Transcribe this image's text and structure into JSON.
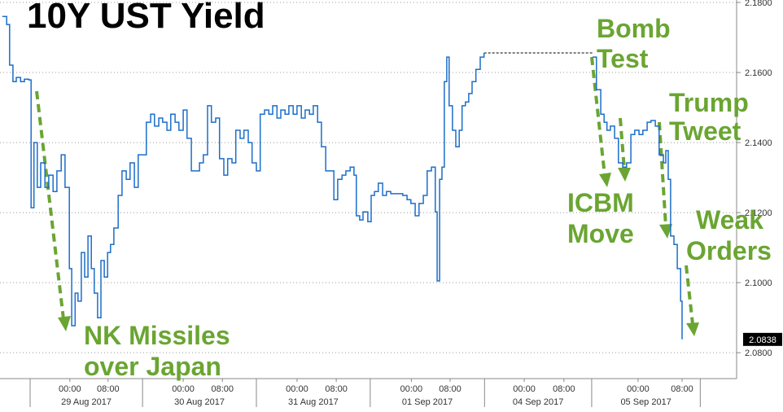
{
  "chart_data": {
    "type": "line",
    "title": "10Y UST Yield",
    "x": [
      0.5,
      1.4,
      2.0,
      2.7,
      3.4,
      4.3,
      5.1,
      6.0,
      6.5,
      7.1,
      7.8,
      8.5,
      9.4,
      10.2,
      11.1,
      11.9,
      12.8,
      13.6,
      14.5,
      15.0,
      15.7,
      16.3,
      17.0,
      17.7,
      18.4,
      19.1,
      19.7,
      20.4,
      21.1,
      21.8,
      22.5,
      23.1,
      23.8,
      24.7,
      25.5,
      26.4,
      27.2,
      28.1,
      28.9,
      29.8,
      30.6,
      31.5,
      32.3,
      33.2,
      34.0,
      34.9,
      35.7,
      36.6,
      37.4,
      38.3,
      39.1,
      40.0,
      40.8,
      41.7,
      42.5,
      43.4,
      44.2,
      45.1,
      45.9,
      46.8,
      47.6,
      48.5,
      49.3,
      50.2,
      51.0,
      51.9,
      52.7,
      53.6,
      54.4,
      55.3,
      56.2,
      57.0,
      57.9,
      58.7,
      59.6,
      60.4,
      61.3,
      62.1,
      63.0,
      63.8,
      64.7,
      65.5,
      66.4,
      67.2,
      68.1,
      68.9,
      69.8,
      70.6,
      71.5,
      72.3,
      73.2,
      74.0,
      74.5,
      75.2,
      75.9,
      76.9,
      77.6,
      78.3,
      79.1,
      80.0,
      80.8,
      81.7,
      83.4,
      84.2,
      85.1,
      85.9,
      86.8,
      87.6,
      88.5,
      89.3,
      90.2,
      91.0,
      91.4,
      91.9,
      92.4,
      92.9,
      93.4,
      93.9,
      94.6,
      95.3,
      96.0,
      96.6,
      97.3,
      98.0,
      98.7,
      99.5,
      100.4,
      101.2,
      123.9,
      124.7,
      125.6,
      126.3,
      126.9,
      127.6,
      128.5,
      129.3,
      130.2,
      131.0,
      131.9,
      132.7,
      133.6,
      134.4,
      135.3,
      136.1,
      137.0,
      137.8,
      138.7,
      139.2,
      139.7,
      140.2,
      140.9,
      141.6,
      142.3,
      142.6
    ],
    "series": [
      {
        "name": "10Y UST Yield",
        "color": "#1c6ec9",
        "values": [
          2.176,
          2.1737,
          2.1621,
          2.1574,
          2.1586,
          2.1574,
          2.1581,
          2.1579,
          2.1214,
          2.14,
          2.1272,
          2.1342,
          2.1272,
          2.1307,
          2.126,
          2.1319,
          2.1365,
          2.1272,
          2.104,
          2.0877,
          2.097,
          2.0947,
          2.1086,
          2.1016,
          2.1133,
          2.104,
          2.097,
          2.09,
          2.1063,
          2.1016,
          2.1086,
          2.1109,
          2.1156,
          2.1249,
          2.1319,
          2.1295,
          2.1342,
          2.1272,
          2.1365,
          2.1365,
          2.1458,
          2.1481,
          2.1447,
          2.147,
          2.1458,
          2.1435,
          2.1481,
          2.1458,
          2.1435,
          2.1493,
          2.1412,
          2.1319,
          2.1319,
          2.1342,
          2.1365,
          2.1505,
          2.1458,
          2.147,
          2.1354,
          2.1307,
          2.1354,
          2.1342,
          2.1435,
          2.1412,
          2.1435,
          2.14,
          2.1342,
          2.1319,
          2.1481,
          2.1493,
          2.1481,
          2.1505,
          2.147,
          2.1493,
          2.1481,
          2.1505,
          2.1481,
          2.1505,
          2.147,
          2.1493,
          2.1481,
          2.1505,
          2.1458,
          2.1388,
          2.1319,
          2.1319,
          2.1237,
          2.1295,
          2.1307,
          2.1319,
          2.133,
          2.1307,
          2.1191,
          2.1179,
          2.1202,
          2.1174,
          2.1249,
          2.126,
          2.1284,
          2.1249,
          2.126,
          2.1254,
          2.1254,
          2.1249,
          2.1237,
          2.1226,
          2.1191,
          2.1226,
          2.1249,
          2.1319,
          2.133,
          2.1202,
          2.1005,
          2.1295,
          2.133,
          2.1574,
          2.1644,
          2.1505,
          2.1435,
          2.1388,
          2.1435,
          2.1505,
          2.1516,
          2.154,
          2.1574,
          2.1609,
          2.1644,
          2.1656,
          2.1644,
          2.1551,
          2.1481,
          2.1458,
          2.1435,
          2.1447,
          2.1412,
          2.1342,
          2.133,
          2.1342,
          2.1423,
          2.1435,
          2.1423,
          2.1435,
          2.1458,
          2.1463,
          2.1447,
          2.1365,
          2.1342,
          2.1377,
          2.1295,
          2.1133,
          2.1109,
          2.104,
          2.0947,
          2.0838
        ]
      }
    ],
    "xlim": [
      0,
      154
    ],
    "ylim": [
      2.0726,
      2.1807
    ],
    "yticks": [
      {
        "value": 2.08,
        "label": "2.0800"
      },
      {
        "value": 2.1,
        "label": "2.1000"
      },
      {
        "value": 2.12,
        "label": "2.1200"
      },
      {
        "value": 2.14,
        "label": "2.1400"
      },
      {
        "value": 2.16,
        "label": "2.1600"
      },
      {
        "value": 2.18,
        "label": "2.1800"
      }
    ],
    "xticks": [
      {
        "value": 14.6,
        "label": "00:00"
      },
      {
        "value": 22.6,
        "label": "08:00"
      },
      {
        "value": 38.3,
        "label": "00:00"
      },
      {
        "value": 46.5,
        "label": "08:00"
      },
      {
        "value": 62.1,
        "label": "00:00"
      },
      {
        "value": 70.3,
        "label": "08:00"
      },
      {
        "value": 86.0,
        "label": "00:00"
      },
      {
        "value": 94.1,
        "label": "08:00"
      },
      {
        "value": 109.6,
        "label": "00:00"
      },
      {
        "value": 117.9,
        "label": "08:00"
      },
      {
        "value": 133.4,
        "label": "00:00"
      },
      {
        "value": 142.6,
        "label": "08:00"
      }
    ],
    "day_bounds": [
      6.3,
      29.8,
      53.6,
      77.4,
      101.3,
      123.7,
      146.4
    ],
    "day_labels": [
      "29 Aug 2017",
      "30 Aug 2017",
      "31 Aug 2017",
      "01 Sep 2017",
      "04 Sep 2017",
      "05 Sep 2017"
    ],
    "grid": true,
    "annotation_color": "#6aa532",
    "annotations": [
      {
        "lines": [
          "NK Missiles",
          "over Japan"
        ]
      },
      {
        "lines": [
          "Bomb",
          "Test"
        ]
      },
      {
        "lines": [
          "Trump",
          "Tweet"
        ]
      },
      {
        "lines": [
          "ICBM",
          "Move"
        ]
      },
      {
        "lines": [
          "Weak",
          "Orders"
        ]
      }
    ]
  }
}
